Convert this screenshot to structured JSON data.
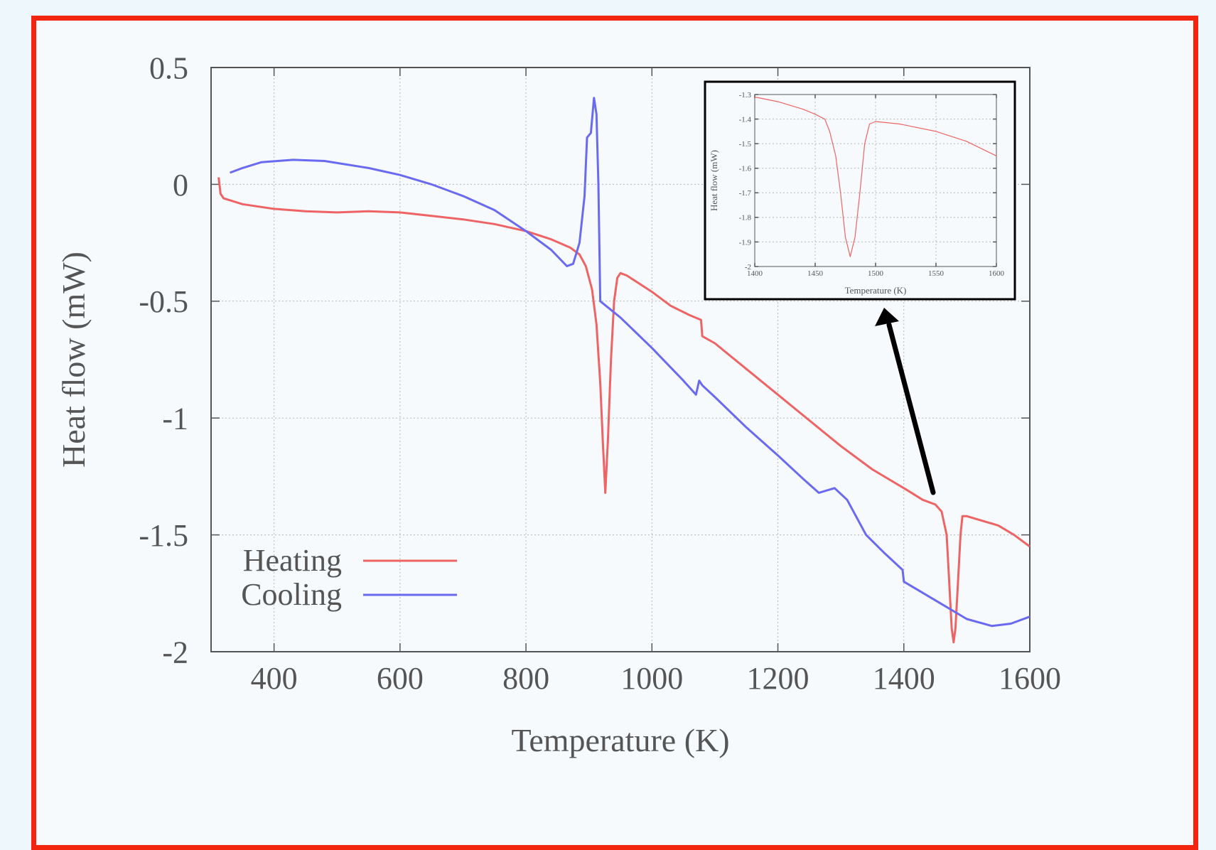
{
  "colors": {
    "frame_border": "#f2260f",
    "background": "#eef7fb",
    "plot_background": "#f6fafd",
    "heating": "#ee6464",
    "cooling": "#6a6af0",
    "axis": "#555555",
    "grid": "#b8b8b8",
    "arrow": "#000000"
  },
  "chart_data": [
    {
      "type": "line",
      "role": "main",
      "xlabel": "Temperature (K)",
      "ylabel": "Heat flow (mW)",
      "xlim": [
        300,
        1600
      ],
      "ylim": [
        -2,
        0.5
      ],
      "xticks": [
        400,
        600,
        800,
        1000,
        1200,
        1400,
        1600
      ],
      "yticks": [
        0.5,
        0,
        -0.5,
        -1,
        -1.5,
        -2
      ],
      "ytick_labels": [
        "0.5",
        "0",
        "-0.5",
        "-1",
        "-1.5",
        "-2"
      ],
      "grid": true,
      "legend_position": "bottom-left",
      "series": [
        {
          "name": "Heating",
          "color": "#ee6464",
          "points": [
            [
              312,
              0.03
            ],
            [
              315,
              -0.04
            ],
            [
              320,
              -0.06
            ],
            [
              350,
              -0.085
            ],
            [
              400,
              -0.105
            ],
            [
              450,
              -0.115
            ],
            [
              500,
              -0.12
            ],
            [
              550,
              -0.115
            ],
            [
              600,
              -0.12
            ],
            [
              650,
              -0.135
            ],
            [
              700,
              -0.15
            ],
            [
              750,
              -0.17
            ],
            [
              800,
              -0.2
            ],
            [
              840,
              -0.235
            ],
            [
              870,
              -0.27
            ],
            [
              885,
              -0.3
            ],
            [
              895,
              -0.35
            ],
            [
              905,
              -0.45
            ],
            [
              912,
              -0.6
            ],
            [
              918,
              -0.85
            ],
            [
              922,
              -1.1
            ],
            [
              926,
              -1.32
            ],
            [
              930,
              -1.1
            ],
            [
              935,
              -0.75
            ],
            [
              940,
              -0.5
            ],
            [
              945,
              -0.4
            ],
            [
              950,
              -0.38
            ],
            [
              960,
              -0.39
            ],
            [
              1000,
              -0.46
            ],
            [
              1030,
              -0.52
            ],
            [
              1060,
              -0.56
            ],
            [
              1078,
              -0.58
            ],
            [
              1080,
              -0.65
            ],
            [
              1100,
              -0.68
            ],
            [
              1150,
              -0.79
            ],
            [
              1200,
              -0.9
            ],
            [
              1250,
              -1.01
            ],
            [
              1300,
              -1.12
            ],
            [
              1350,
              -1.22
            ],
            [
              1400,
              -1.3
            ],
            [
              1430,
              -1.35
            ],
            [
              1450,
              -1.37
            ],
            [
              1460,
              -1.4
            ],
            [
              1468,
              -1.5
            ],
            [
              1472,
              -1.7
            ],
            [
              1476,
              -1.9
            ],
            [
              1479,
              -1.96
            ],
            [
              1482,
              -1.9
            ],
            [
              1486,
              -1.7
            ],
            [
              1490,
              -1.5
            ],
            [
              1493,
              -1.42
            ],
            [
              1500,
              -1.42
            ],
            [
              1550,
              -1.46
            ],
            [
              1575,
              -1.5
            ],
            [
              1600,
              -1.55
            ]
          ]
        },
        {
          "name": "Cooling",
          "color": "#6a6af0",
          "points": [
            [
              330,
              0.05
            ],
            [
              350,
              0.07
            ],
            [
              380,
              0.095
            ],
            [
              430,
              0.105
            ],
            [
              480,
              0.1
            ],
            [
              550,
              0.07
            ],
            [
              600,
              0.04
            ],
            [
              650,
              0.0
            ],
            [
              700,
              -0.05
            ],
            [
              750,
              -0.11
            ],
            [
              800,
              -0.2
            ],
            [
              840,
              -0.28
            ],
            [
              865,
              -0.35
            ],
            [
              875,
              -0.34
            ],
            [
              885,
              -0.25
            ],
            [
              893,
              -0.05
            ],
            [
              897,
              0.2
            ],
            [
              903,
              0.22
            ],
            [
              908,
              0.37
            ],
            [
              912,
              0.3
            ],
            [
              915,
              0.0
            ],
            [
              918,
              -0.5
            ],
            [
              950,
              -0.57
            ],
            [
              1000,
              -0.7
            ],
            [
              1050,
              -0.84
            ],
            [
              1070,
              -0.9
            ],
            [
              1075,
              -0.84
            ],
            [
              1080,
              -0.86
            ],
            [
              1100,
              -0.91
            ],
            [
              1150,
              -1.04
            ],
            [
              1200,
              -1.16
            ],
            [
              1240,
              -1.26
            ],
            [
              1265,
              -1.32
            ],
            [
              1290,
              -1.3
            ],
            [
              1310,
              -1.35
            ],
            [
              1340,
              -1.5
            ],
            [
              1370,
              -1.58
            ],
            [
              1398,
              -1.65
            ],
            [
              1400,
              -1.7
            ],
            [
              1450,
              -1.78
            ],
            [
              1500,
              -1.86
            ],
            [
              1540,
              -1.89
            ],
            [
              1570,
              -1.88
            ],
            [
              1600,
              -1.85
            ]
          ]
        }
      ]
    },
    {
      "type": "line",
      "role": "inset",
      "xlabel": "Temperature (K)",
      "ylabel": "Heat flow (mW)",
      "xlim": [
        1400,
        1600
      ],
      "ylim": [
        -2,
        -1.3
      ],
      "xticks": [
        1400,
        1450,
        1500,
        1550,
        1600
      ],
      "yticks": [
        -1.3,
        -1.4,
        -1.5,
        -1.6,
        -1.7,
        -1.8,
        -1.9,
        -2
      ],
      "ytick_labels": [
        "-1.3",
        "-1.4",
        "-1.5",
        "-1.6",
        "-1.7",
        "-1.8",
        "-1.9",
        "-2"
      ],
      "grid": true,
      "series": [
        {
          "color": "#ee6464",
          "points": [
            [
              1400,
              -1.31
            ],
            [
              1420,
              -1.33
            ],
            [
              1440,
              -1.36
            ],
            [
              1450,
              -1.38
            ],
            [
              1458,
              -1.4
            ],
            [
              1462,
              -1.45
            ],
            [
              1467,
              -1.55
            ],
            [
              1471,
              -1.7
            ],
            [
              1475,
              -1.88
            ],
            [
              1479,
              -1.96
            ],
            [
              1483,
              -1.88
            ],
            [
              1487,
              -1.7
            ],
            [
              1491,
              -1.5
            ],
            [
              1495,
              -1.42
            ],
            [
              1500,
              -1.41
            ],
            [
              1520,
              -1.42
            ],
            [
              1550,
              -1.45
            ],
            [
              1575,
              -1.49
            ],
            [
              1600,
              -1.55
            ]
          ]
        }
      ]
    }
  ]
}
